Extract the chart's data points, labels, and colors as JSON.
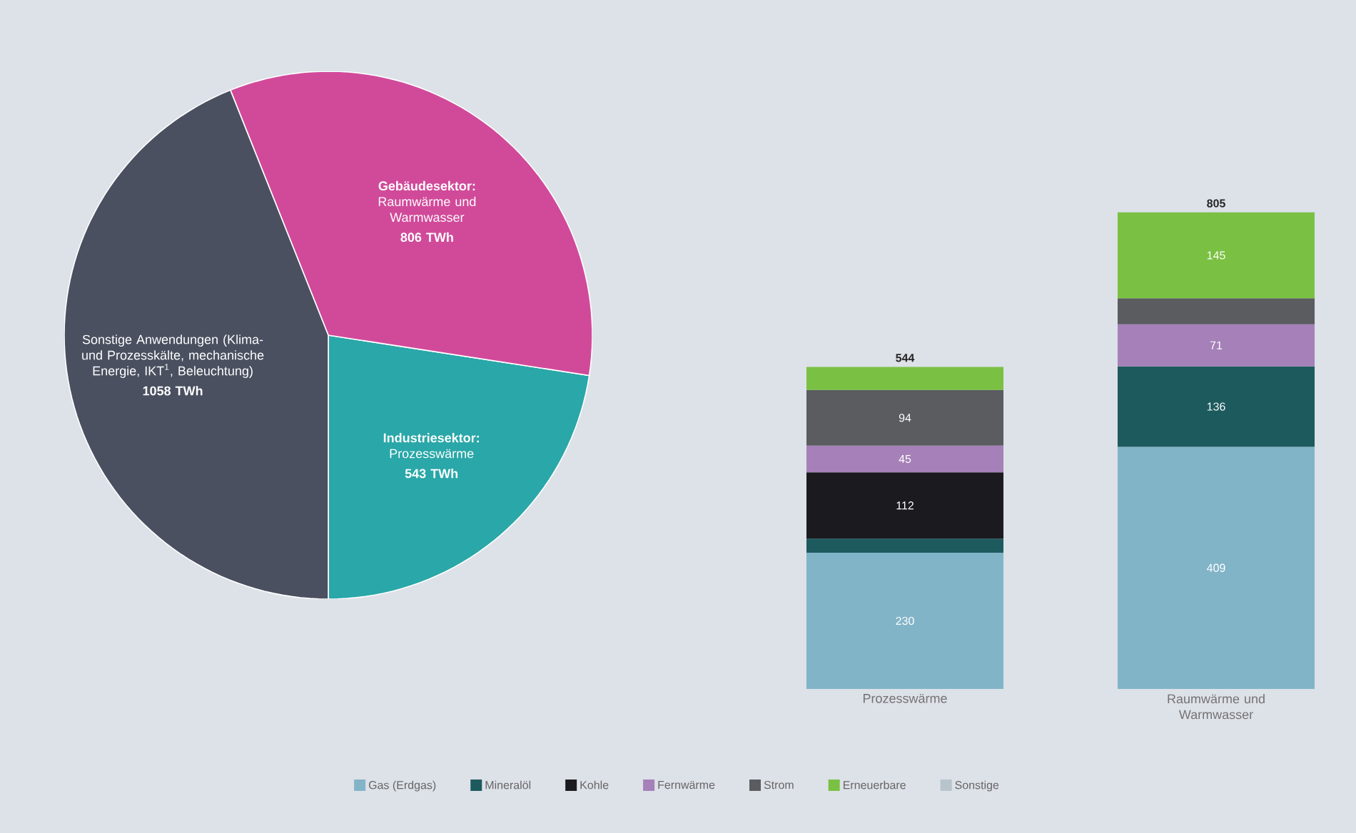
{
  "chart_data": [
    {
      "type": "pie",
      "categories": [
        "**Gebäudesektor:** Raumwärme und Warmwasser",
        "**Industriesektor:** Prozesswärme",
        "Sonstige Anwendungen (Klima- und Prozesskälte, mechanische Energie, IKT$^{1}$, Beleuchtung)"
      ],
      "values": [
        806,
        543,
        1058
      ],
      "value_labels": [
        "806 TWh",
        "543 TWh",
        "1058 TWh"
      ],
      "colors": [
        "#d14a9a",
        "#2aa7a8",
        "#4a5060"
      ]
    },
    {
      "type": "bar",
      "stacked": true,
      "categories": [
        "Prozesswärme",
        "Raumwärme und Warmwasser"
      ],
      "legend": "bottom",
      "totals": [
        "544",
        "805"
      ],
      "series": [
        {
          "name": "Gas (Erdgas)",
          "color": "#82b4c8",
          "values": [
            230,
            409
          ],
          "value_labels": [
            "230",
            "409"
          ]
        },
        {
          "name": "Mineralöl",
          "color": "#1d5a5e",
          "values": [
            24,
            136
          ],
          "value_labels": [
            null,
            "136"
          ]
        },
        {
          "name": "Kohle",
          "color": "#1a1a1f",
          "values": [
            112,
            null
          ],
          "value_labels": [
            "112",
            null
          ]
        },
        {
          "name": "Fernwärme",
          "color": "#a680b8",
          "values": [
            45,
            71
          ],
          "value_labels": [
            "45",
            "71"
          ]
        },
        {
          "name": "Strom",
          "color": "#5a5c60",
          "values": [
            94,
            44
          ],
          "value_labels": [
            "94",
            null
          ]
        },
        {
          "name": "Erneuerbare",
          "color": "#7ac143",
          "values": [
            39,
            145
          ],
          "value_labels": [
            null,
            "145"
          ]
        },
        {
          "name": "Sonstige",
          "color": "#b8c4cc",
          "values": [
            null,
            null
          ],
          "value_labels": [
            null,
            null
          ]
        }
      ]
    }
  ]
}
